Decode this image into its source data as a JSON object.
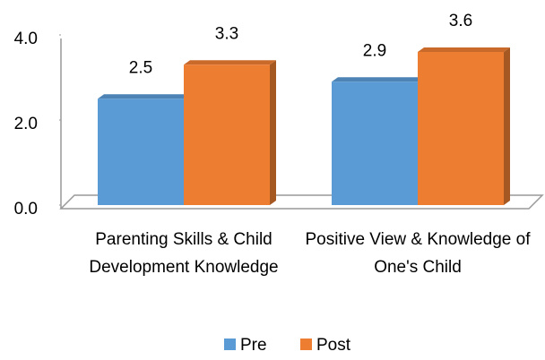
{
  "chart_data": {
    "type": "bar",
    "categories": [
      "Parenting Skills & Child Development Knowledge",
      "Positive View & Knowledge of One's Child"
    ],
    "series": [
      {
        "name": "Pre",
        "color": "#5b9bd5",
        "values": [
          2.5,
          2.9
        ]
      },
      {
        "name": "Post",
        "color": "#ed7d31",
        "values": [
          3.3,
          3.6
        ]
      }
    ],
    "ylim": [
      0,
      4
    ],
    "yticks": [
      {
        "value": 0,
        "label": "0.0"
      },
      {
        "value": 2,
        "label": "2.0"
      },
      {
        "value": 4,
        "label": "4.0"
      }
    ],
    "legend": "bottom"
  }
}
